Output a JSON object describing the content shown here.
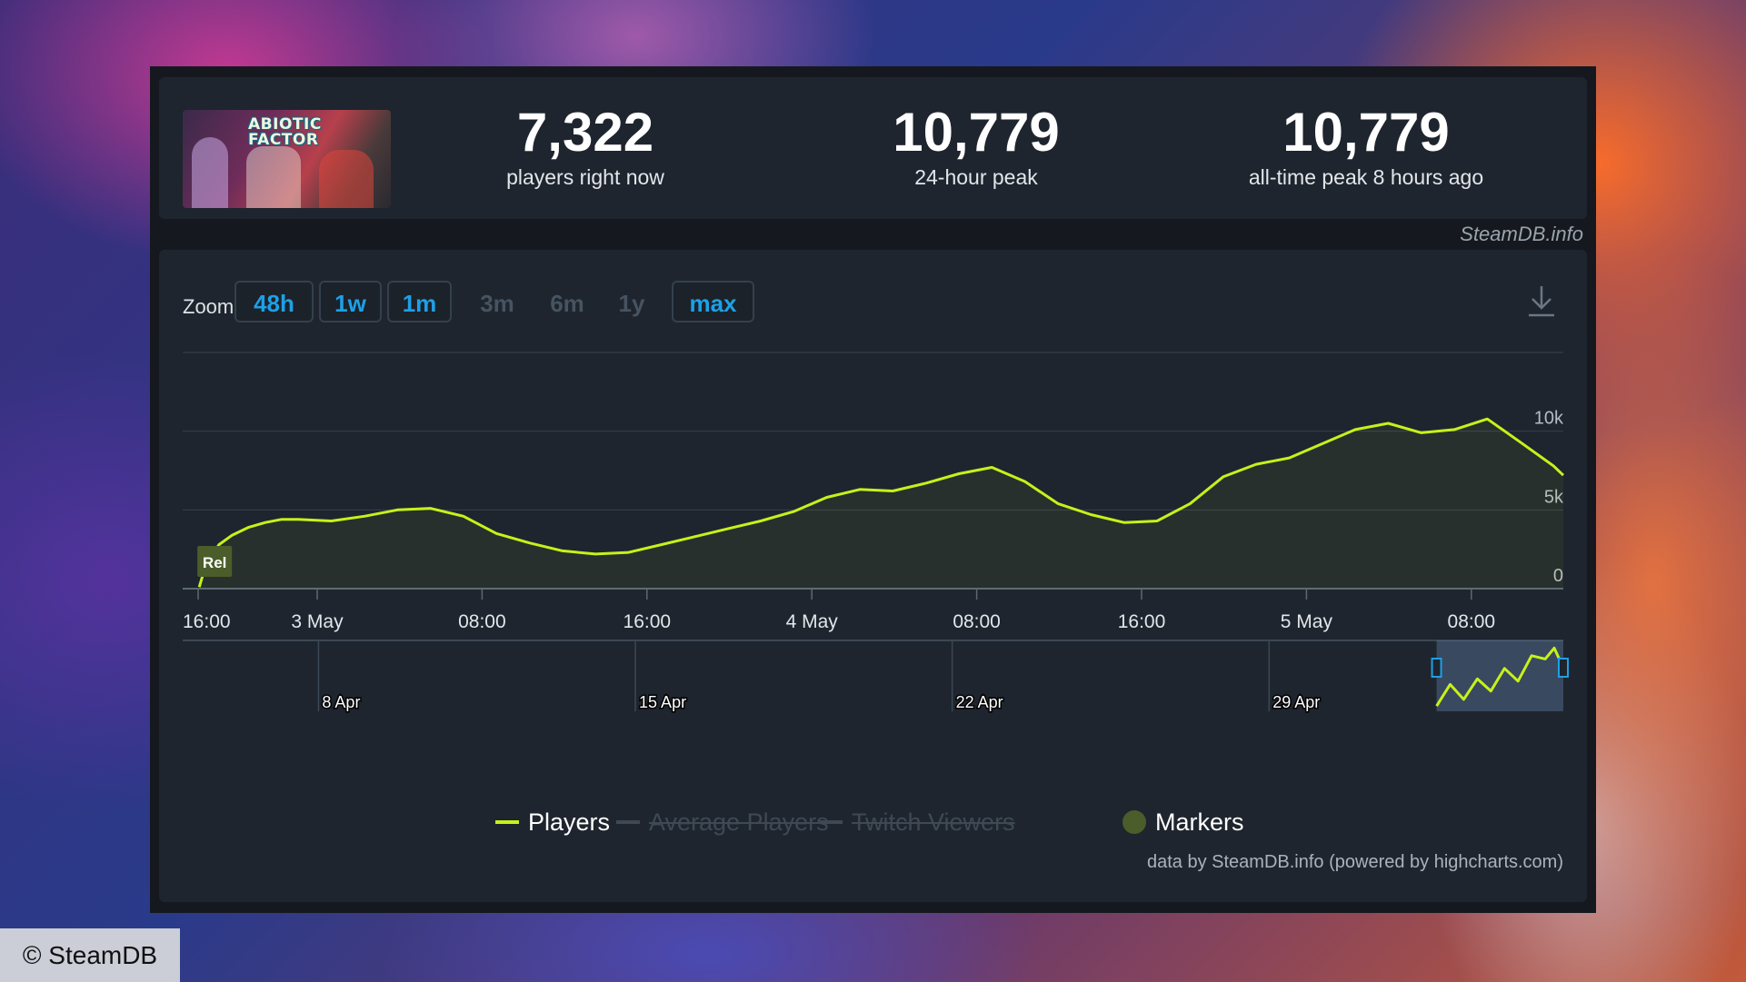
{
  "stats": {
    "current_players": "7,322",
    "current_label": "players right now",
    "peak_24h": "10,779",
    "peak_24h_label": "24-hour peak",
    "all_time_peak": "10,779",
    "all_time_label": "all-time peak 8 hours ago"
  },
  "game_thumb_text": "ABIOTIC FACTOR",
  "brand": "SteamDB.info",
  "zoom": {
    "label": "Zoom",
    "buttons": [
      {
        "label": "48h",
        "active": true
      },
      {
        "label": "1w",
        "active": true
      },
      {
        "label": "1m",
        "active": true
      },
      {
        "label": "3m",
        "active": false
      },
      {
        "label": "6m",
        "active": false
      },
      {
        "label": "1y",
        "active": false
      },
      {
        "label": "max",
        "active": true
      }
    ]
  },
  "colors": {
    "players_line": "#c6f21a",
    "grid": "#36414d",
    "accent": "#1ea0e6",
    "marker": "#4b5d2a"
  },
  "chart_data": {
    "type": "line",
    "title": "",
    "xlabel": "",
    "ylabel": "",
    "x_ticks": [
      "16:00",
      "3 May",
      "08:00",
      "16:00",
      "4 May",
      "08:00",
      "16:00",
      "5 May",
      "08:00"
    ],
    "x_range_hours": [
      -1.5,
      40.3
    ],
    "y_ticks": [
      "0",
      "5k",
      "10k"
    ],
    "y_tick_values": [
      0,
      5000,
      10000
    ],
    "ylim": [
      0,
      15000
    ],
    "series": [
      {
        "name": "Players",
        "x_hours": [
          -1,
          -0.8,
          -0.4,
          0,
          0.5,
          1,
          1.5,
          2,
          3,
          4,
          5,
          6,
          7,
          8,
          9,
          10,
          11,
          12,
          13,
          14,
          15,
          16,
          17,
          18,
          19,
          20,
          21,
          22,
          23,
          24,
          25,
          26,
          27,
          28,
          29,
          30,
          31,
          32,
          33,
          34,
          35,
          36,
          37,
          38,
          39,
          40,
          40.3
        ],
        "values": [
          100,
          1500,
          2800,
          3400,
          3900,
          4200,
          4400,
          4400,
          4300,
          4600,
          5000,
          5100,
          4600,
          3500,
          2900,
          2400,
          2200,
          2300,
          2800,
          3300,
          3800,
          4300,
          4900,
          5800,
          6300,
          6200,
          6700,
          7300,
          7700,
          6800,
          5400,
          4700,
          4200,
          4300,
          5400,
          7100,
          7900,
          8300,
          9200,
          10100,
          10500,
          9900,
          10100,
          10779,
          9300,
          7800,
          7200
        ]
      },
      {
        "name": "Average Players",
        "visible": false,
        "values": []
      },
      {
        "name": "Twitch Viewers",
        "visible": false,
        "values": []
      }
    ],
    "markers": [
      {
        "label": "Rel"
      }
    ],
    "navigator": {
      "ticks": [
        "8 Apr",
        "15 Apr",
        "22 Apr",
        "29 Apr"
      ],
      "tick_days": [
        0,
        7,
        14,
        21
      ],
      "x_range_days": [
        -3,
        27.5
      ],
      "selected_days": [
        24.7,
        27.5
      ],
      "series_days": [
        24.7,
        25.0,
        25.3,
        25.6,
        25.9,
        26.2,
        26.5,
        26.8,
        27.1,
        27.3,
        27.5
      ],
      "series_values": [
        300,
        4200,
        1500,
        5200,
        3000,
        7100,
        4800,
        9400,
        8800,
        10779,
        7200
      ]
    },
    "grid": true,
    "legend_position": "bottom"
  },
  "legend": [
    {
      "name": "Players",
      "visible": true
    },
    {
      "name": "Average Players",
      "visible": false
    },
    {
      "name": "Twitch Viewers",
      "visible": false
    },
    {
      "name": "Markers",
      "visible": true
    }
  ],
  "credit": "data by SteamDB.info (powered by highcharts.com)",
  "copyright": "© SteamDB"
}
